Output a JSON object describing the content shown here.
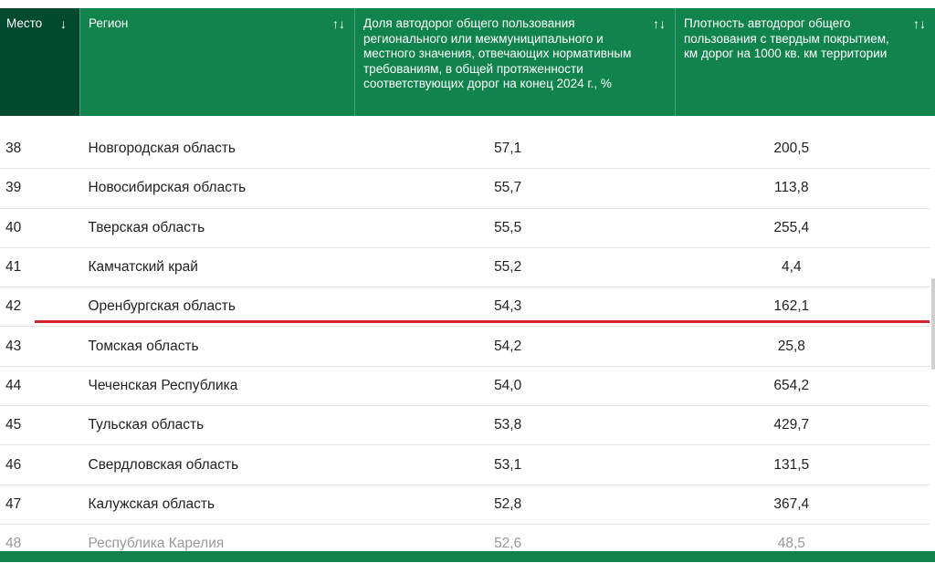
{
  "header": {
    "columns": [
      {
        "label": "Место",
        "sort_icon": "↓"
      },
      {
        "label": "Регион",
        "sort_icon": "↑↓"
      },
      {
        "label": "Доля автодорог общего пользования регионального или межмуниципального и местного значения, отвечающих нормативным требованиям, в общей протяженности соответствующих дорог на конец 2024 г., %",
        "sort_icon": "↑↓"
      },
      {
        "label": "Плотность автодорог общего пользования с твердым покрытием, км дорог на 1000 кв. км территории",
        "sort_icon": "↑↓"
      }
    ]
  },
  "rows": [
    {
      "place": "38",
      "region": "Новгородская область",
      "share": "57,1",
      "density": "200,5"
    },
    {
      "place": "39",
      "region": "Новосибирская область",
      "share": "55,7",
      "density": "113,8"
    },
    {
      "place": "40",
      "region": "Тверская область",
      "share": "55,5",
      "density": "255,4"
    },
    {
      "place": "41",
      "region": "Камчатский край",
      "share": "55,2",
      "density": "4,4"
    },
    {
      "place": "42",
      "region": "Оренбургская область",
      "share": "54,3",
      "density": "162,1"
    },
    {
      "place": "43",
      "region": "Томская область",
      "share": "54,2",
      "density": "25,8"
    },
    {
      "place": "44",
      "region": "Чеченская Республика",
      "share": "54,0",
      "density": "654,2"
    },
    {
      "place": "45",
      "region": "Тульская область",
      "share": "53,8",
      "density": "429,7"
    },
    {
      "place": "46",
      "region": "Свердловская область",
      "share": "53,1",
      "density": "131,5"
    },
    {
      "place": "47",
      "region": "Калужская область",
      "share": "52,8",
      "density": "367,4"
    },
    {
      "place": "48",
      "region": "Республика Карелия",
      "share": "52,6",
      "density": "48,5"
    }
  ]
}
